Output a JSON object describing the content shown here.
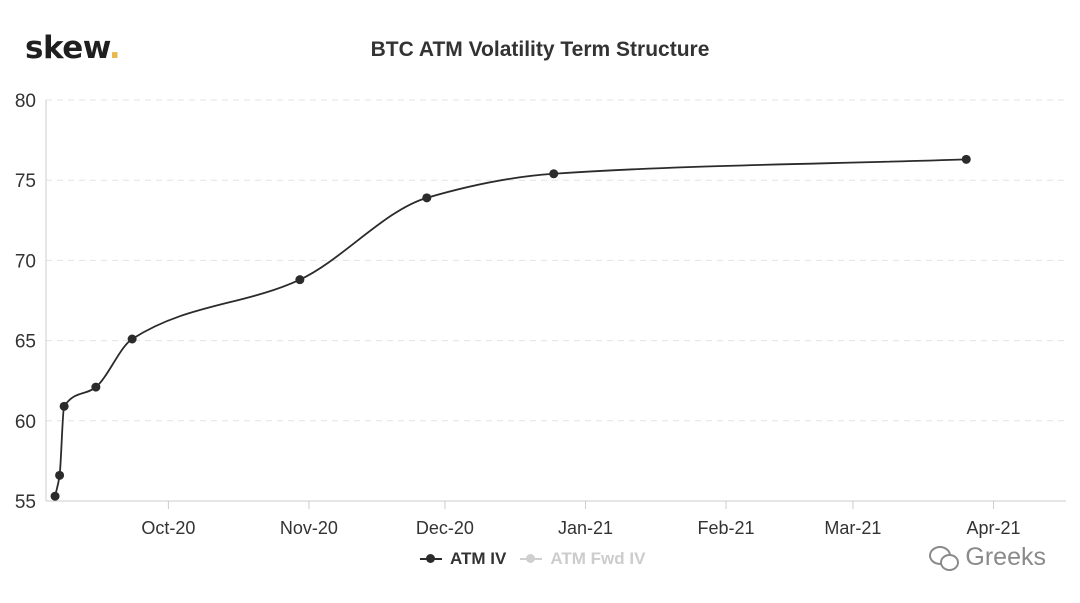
{
  "logo": {
    "text": "skew",
    "dot": "."
  },
  "chart_data": {
    "type": "line",
    "title": "BTC ATM Volatility Term Structure",
    "xlabel": "",
    "ylabel": "",
    "ylim": [
      55,
      80
    ],
    "yticks": [
      55,
      60,
      65,
      70,
      75,
      80
    ],
    "xlim": [
      "2020-09-04",
      "2021-04-17"
    ],
    "xticks": [
      {
        "date": "2020-10-01",
        "label": "Oct-20"
      },
      {
        "date": "2020-11-01",
        "label": "Nov-20"
      },
      {
        "date": "2020-12-01",
        "label": "Dec-20"
      },
      {
        "date": "2021-01-01",
        "label": "Jan-21"
      },
      {
        "date": "2021-02-01",
        "label": "Feb-21"
      },
      {
        "date": "2021-03-01",
        "label": "Mar-21"
      },
      {
        "date": "2021-04-01",
        "label": "Apr-21"
      }
    ],
    "grid": true,
    "legend_position": "bottom-center",
    "series": [
      {
        "name": "ATM IV",
        "color": "#2b2b2b",
        "active": true,
        "points": [
          {
            "x": "2020-09-06",
            "y": 55.3
          },
          {
            "x": "2020-09-07",
            "y": 56.6
          },
          {
            "x": "2020-09-08",
            "y": 60.9
          },
          {
            "x": "2020-09-15",
            "y": 62.1
          },
          {
            "x": "2020-09-23",
            "y": 65.1
          },
          {
            "x": "2020-10-30",
            "y": 68.8
          },
          {
            "x": "2020-11-27",
            "y": 73.9
          },
          {
            "x": "2020-12-25",
            "y": 75.4
          },
          {
            "x": "2021-03-26",
            "y": 76.3
          }
        ]
      },
      {
        "name": "ATM Fwd IV",
        "color": "#cfcfcf",
        "active": false,
        "points": []
      }
    ]
  },
  "watermark": {
    "text": "Greeks"
  }
}
